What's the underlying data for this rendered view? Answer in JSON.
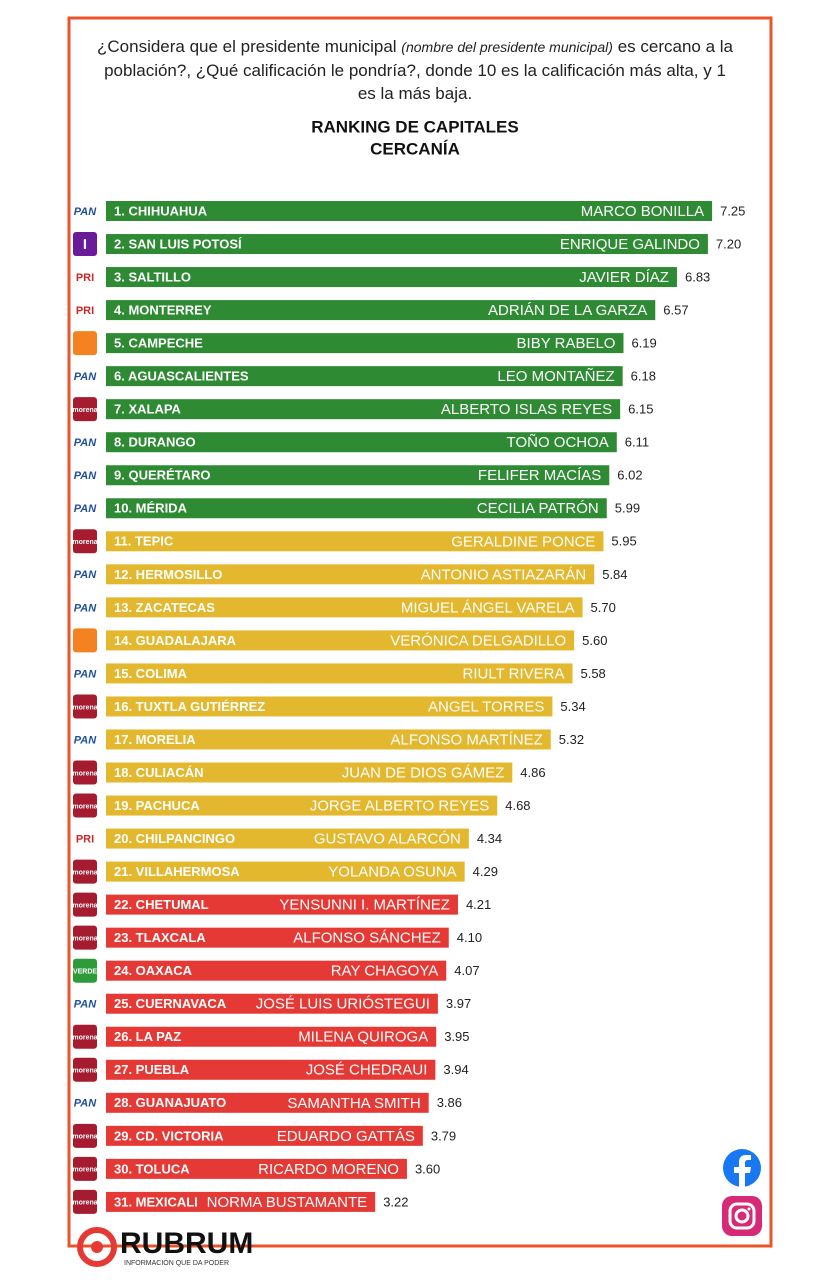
{
  "chart_data": {
    "type": "bar",
    "question": [
      "¿Considera que el presidente municipal ",
      "(nombre del presidente municipal)",
      " es cercano a la población?, ¿Qué calificación le pondría?, donde 10 es la calificación más alta, y 1 es la más baja."
    ],
    "title": "RANKING DE CAPITALES",
    "subtitle": "CERCANÍA",
    "categories": [
      "1. CHIHUAHUA",
      "2. SAN LUIS POTOSÍ",
      "3. SALTILLO",
      "4. MONTERREY",
      "5. CAMPECHE",
      "6. AGUASCALIENTES",
      "7. XALAPA",
      "8. DURANGO",
      "9. QUERÉTARO",
      "10. MÉRIDA",
      "11. TEPIC",
      "12. HERMOSILLO",
      "13. ZACATECAS",
      "14. GUADALAJARA",
      "15. COLIMA",
      "16. TUXTLA GUTIÉRREZ",
      "17. MORELIA",
      "18. CULIACÁN",
      "19. PACHUCA",
      "20. CHILPANCINGO",
      "21. VILLAHERMOSA",
      "22. CHETUMAL",
      "23. TLAXCALA",
      "24. OAXACA",
      "25. CUERNAVACA",
      "26. LA PAZ",
      "27. PUEBLA",
      "28. GUANAJUATO",
      "29. CD. VICTORIA",
      "30. TOLUCA",
      "31. MEXICALI"
    ],
    "names": [
      "MARCO BONILLA",
      "ENRIQUE GALINDO",
      "JAVIER DÍAZ",
      "ADRIÁN DE LA GARZA",
      "BIBY RABELO",
      "LEO MONTAÑEZ",
      "ALBERTO ISLAS REYES",
      "TOÑO OCHOA",
      "FELIFER MACÍAS",
      "CECILIA PATRÓN",
      "GERALDINE PONCE",
      "ANTONIO ASTIAZARÁN",
      "MIGUEL ÁNGEL VARELA",
      "VERÓNICA DELGADILLO",
      "RIULT RIVERA",
      "ANGEL TORRES",
      "ALFONSO MARTÍNEZ",
      "JUAN DE DIOS GÁMEZ",
      "JORGE ALBERTO REYES",
      "GUSTAVO ALARCÓN",
      "YOLANDA OSUNA",
      "YENSUNNI I. MARTÍNEZ",
      "ALFONSO SÁNCHEZ",
      "RAY CHAGOYA",
      "JOSÉ LUIS URIÓSTEGUI",
      "MILENA QUIROGA",
      "JOSÉ CHEDRAUI",
      "SAMANTHA SMITH",
      "EDUARDO GATTÁS",
      "RICARDO MORENO",
      "NORMA BUSTAMANTE"
    ],
    "values": [
      7.25,
      7.2,
      6.83,
      6.57,
      6.19,
      6.18,
      6.15,
      6.11,
      6.02,
      5.99,
      5.95,
      5.84,
      5.7,
      5.6,
      5.58,
      5.34,
      5.32,
      4.86,
      4.68,
      4.34,
      4.29,
      4.21,
      4.1,
      4.07,
      3.97,
      3.95,
      3.94,
      3.86,
      3.79,
      3.6,
      3.22
    ],
    "value_labels": [
      "7.25",
      "7.20",
      "6.83",
      "6.57",
      "6.19",
      "6.18",
      "6.15",
      "6.11",
      "6.02",
      "5.99",
      "5.95",
      "5.84",
      "5.70",
      "5.60",
      "5.58",
      "5.34",
      "5.32",
      "4.86",
      "4.68",
      "4.34",
      "4.29",
      "4.21",
      "4.10",
      "4.07",
      "3.97",
      "3.95",
      "3.94",
      "3.86",
      "3.79",
      "3.60",
      "3.22"
    ],
    "colors": [
      "#2e8b34",
      "#2e8b34",
      "#2e8b34",
      "#2e8b34",
      "#2e8b34",
      "#2e8b34",
      "#2e8b34",
      "#2e8b34",
      "#2e8b34",
      "#2e8b34",
      "#e3b82e",
      "#e3b82e",
      "#e3b82e",
      "#e3b82e",
      "#e3b82e",
      "#e3b82e",
      "#e3b82e",
      "#e3b82e",
      "#e3b82e",
      "#e3b82e",
      "#e3b82e",
      "#e53935",
      "#e53935",
      "#e53935",
      "#e53935",
      "#e53935",
      "#e53935",
      "#e53935",
      "#e53935",
      "#e53935",
      "#e53935"
    ],
    "logos": [
      "PAN",
      "I",
      "PRI",
      "PRI",
      null,
      "PAN",
      "morena",
      "PAN",
      "PAN",
      "PAN",
      "morena",
      "PAN",
      "PAN",
      null,
      "PAN",
      "morena",
      "PAN",
      "morena",
      "morena",
      "PRI",
      "morena",
      "morena",
      "morena",
      "VERDE",
      "PAN",
      "morena",
      "morena",
      "PAN",
      "morena",
      "morena",
      "morena"
    ],
    "brand": "RUBRUM",
    "tagline": "INFORMACIÓN QUE DA PODER"
  }
}
